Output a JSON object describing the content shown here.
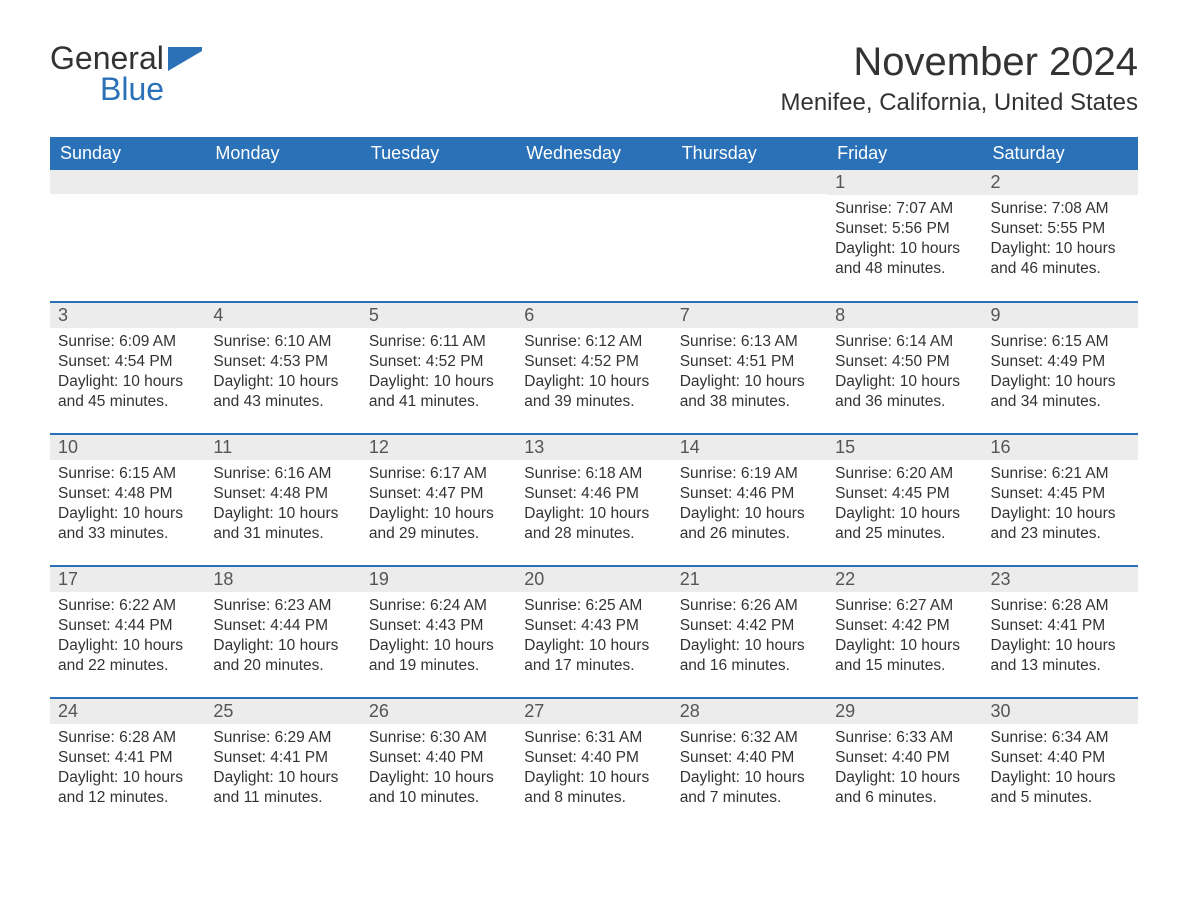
{
  "logo": {
    "text1": "General",
    "text2": "Blue",
    "accent_color": "#2a71b8"
  },
  "title": "November 2024",
  "location": "Menifee, California, United States",
  "colors": {
    "header_bg": "#2a71b8",
    "header_text": "#ffffff",
    "daynum_bg": "#ececec",
    "border": "#2a71b8",
    "text": "#333333"
  },
  "fonts": {
    "title_size_pt": 30,
    "location_size_pt": 18,
    "header_size_pt": 14,
    "body_size_pt": 12
  },
  "weekdays": [
    "Sunday",
    "Monday",
    "Tuesday",
    "Wednesday",
    "Thursday",
    "Friday",
    "Saturday"
  ],
  "labels": {
    "sunrise": "Sunrise: ",
    "sunset": "Sunset: ",
    "daylight": "Daylight: "
  },
  "weeks": [
    [
      null,
      null,
      null,
      null,
      null,
      {
        "day": 1,
        "sunrise": "7:07 AM",
        "sunset": "5:56 PM",
        "daylight": "10 hours and 48 minutes."
      },
      {
        "day": 2,
        "sunrise": "7:08 AM",
        "sunset": "5:55 PM",
        "daylight": "10 hours and 46 minutes."
      }
    ],
    [
      {
        "day": 3,
        "sunrise": "6:09 AM",
        "sunset": "4:54 PM",
        "daylight": "10 hours and 45 minutes."
      },
      {
        "day": 4,
        "sunrise": "6:10 AM",
        "sunset": "4:53 PM",
        "daylight": "10 hours and 43 minutes."
      },
      {
        "day": 5,
        "sunrise": "6:11 AM",
        "sunset": "4:52 PM",
        "daylight": "10 hours and 41 minutes."
      },
      {
        "day": 6,
        "sunrise": "6:12 AM",
        "sunset": "4:52 PM",
        "daylight": "10 hours and 39 minutes."
      },
      {
        "day": 7,
        "sunrise": "6:13 AM",
        "sunset": "4:51 PM",
        "daylight": "10 hours and 38 minutes."
      },
      {
        "day": 8,
        "sunrise": "6:14 AM",
        "sunset": "4:50 PM",
        "daylight": "10 hours and 36 minutes."
      },
      {
        "day": 9,
        "sunrise": "6:15 AM",
        "sunset": "4:49 PM",
        "daylight": "10 hours and 34 minutes."
      }
    ],
    [
      {
        "day": 10,
        "sunrise": "6:15 AM",
        "sunset": "4:48 PM",
        "daylight": "10 hours and 33 minutes."
      },
      {
        "day": 11,
        "sunrise": "6:16 AM",
        "sunset": "4:48 PM",
        "daylight": "10 hours and 31 minutes."
      },
      {
        "day": 12,
        "sunrise": "6:17 AM",
        "sunset": "4:47 PM",
        "daylight": "10 hours and 29 minutes."
      },
      {
        "day": 13,
        "sunrise": "6:18 AM",
        "sunset": "4:46 PM",
        "daylight": "10 hours and 28 minutes."
      },
      {
        "day": 14,
        "sunrise": "6:19 AM",
        "sunset": "4:46 PM",
        "daylight": "10 hours and 26 minutes."
      },
      {
        "day": 15,
        "sunrise": "6:20 AM",
        "sunset": "4:45 PM",
        "daylight": "10 hours and 25 minutes."
      },
      {
        "day": 16,
        "sunrise": "6:21 AM",
        "sunset": "4:45 PM",
        "daylight": "10 hours and 23 minutes."
      }
    ],
    [
      {
        "day": 17,
        "sunrise": "6:22 AM",
        "sunset": "4:44 PM",
        "daylight": "10 hours and 22 minutes."
      },
      {
        "day": 18,
        "sunrise": "6:23 AM",
        "sunset": "4:44 PM",
        "daylight": "10 hours and 20 minutes."
      },
      {
        "day": 19,
        "sunrise": "6:24 AM",
        "sunset": "4:43 PM",
        "daylight": "10 hours and 19 minutes."
      },
      {
        "day": 20,
        "sunrise": "6:25 AM",
        "sunset": "4:43 PM",
        "daylight": "10 hours and 17 minutes."
      },
      {
        "day": 21,
        "sunrise": "6:26 AM",
        "sunset": "4:42 PM",
        "daylight": "10 hours and 16 minutes."
      },
      {
        "day": 22,
        "sunrise": "6:27 AM",
        "sunset": "4:42 PM",
        "daylight": "10 hours and 15 minutes."
      },
      {
        "day": 23,
        "sunrise": "6:28 AM",
        "sunset": "4:41 PM",
        "daylight": "10 hours and 13 minutes."
      }
    ],
    [
      {
        "day": 24,
        "sunrise": "6:28 AM",
        "sunset": "4:41 PM",
        "daylight": "10 hours and 12 minutes."
      },
      {
        "day": 25,
        "sunrise": "6:29 AM",
        "sunset": "4:41 PM",
        "daylight": "10 hours and 11 minutes."
      },
      {
        "day": 26,
        "sunrise": "6:30 AM",
        "sunset": "4:40 PM",
        "daylight": "10 hours and 10 minutes."
      },
      {
        "day": 27,
        "sunrise": "6:31 AM",
        "sunset": "4:40 PM",
        "daylight": "10 hours and 8 minutes."
      },
      {
        "day": 28,
        "sunrise": "6:32 AM",
        "sunset": "4:40 PM",
        "daylight": "10 hours and 7 minutes."
      },
      {
        "day": 29,
        "sunrise": "6:33 AM",
        "sunset": "4:40 PM",
        "daylight": "10 hours and 6 minutes."
      },
      {
        "day": 30,
        "sunrise": "6:34 AM",
        "sunset": "4:40 PM",
        "daylight": "10 hours and 5 minutes."
      }
    ]
  ]
}
